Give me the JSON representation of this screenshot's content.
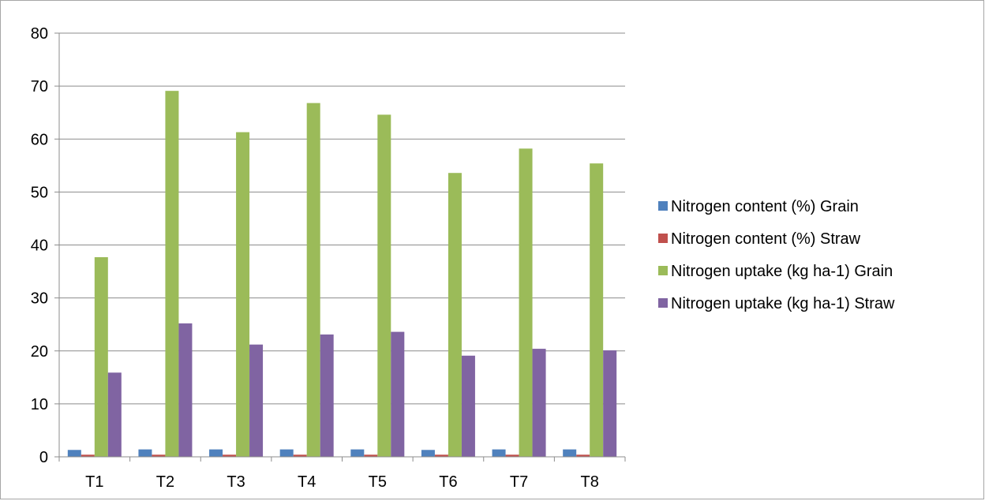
{
  "chart_data": {
    "type": "bar",
    "title": "",
    "xlabel": "",
    "ylabel": "",
    "categories": [
      "T1",
      "T2",
      "T3",
      "T4",
      "T5",
      "T6",
      "T7",
      "T8"
    ],
    "ylim": [
      0,
      80
    ],
    "yticks": [
      0,
      10,
      20,
      30,
      40,
      50,
      60,
      70,
      80
    ],
    "grid": true,
    "legend_position": "right",
    "series": [
      {
        "name": "Nitrogen content (%) Grain",
        "color": "#4f81bd",
        "values": [
          1.3,
          1.4,
          1.4,
          1.4,
          1.4,
          1.3,
          1.4,
          1.4
        ]
      },
      {
        "name": "Nitrogen content (%) Straw",
        "color": "#c0504d",
        "values": [
          0.4,
          0.4,
          0.4,
          0.4,
          0.4,
          0.4,
          0.4,
          0.4
        ]
      },
      {
        "name": "Nitrogen uptake (kg ha-1) Grain",
        "color": "#9bbb59",
        "values": [
          37.7,
          69.1,
          61.3,
          66.8,
          64.6,
          53.6,
          58.2,
          55.4
        ]
      },
      {
        "name": "Nitrogen uptake (kg ha-1) Straw",
        "color": "#8064a2",
        "values": [
          15.9,
          25.2,
          21.2,
          23.1,
          23.6,
          19.1,
          20.4,
          20.1
        ]
      }
    ]
  }
}
